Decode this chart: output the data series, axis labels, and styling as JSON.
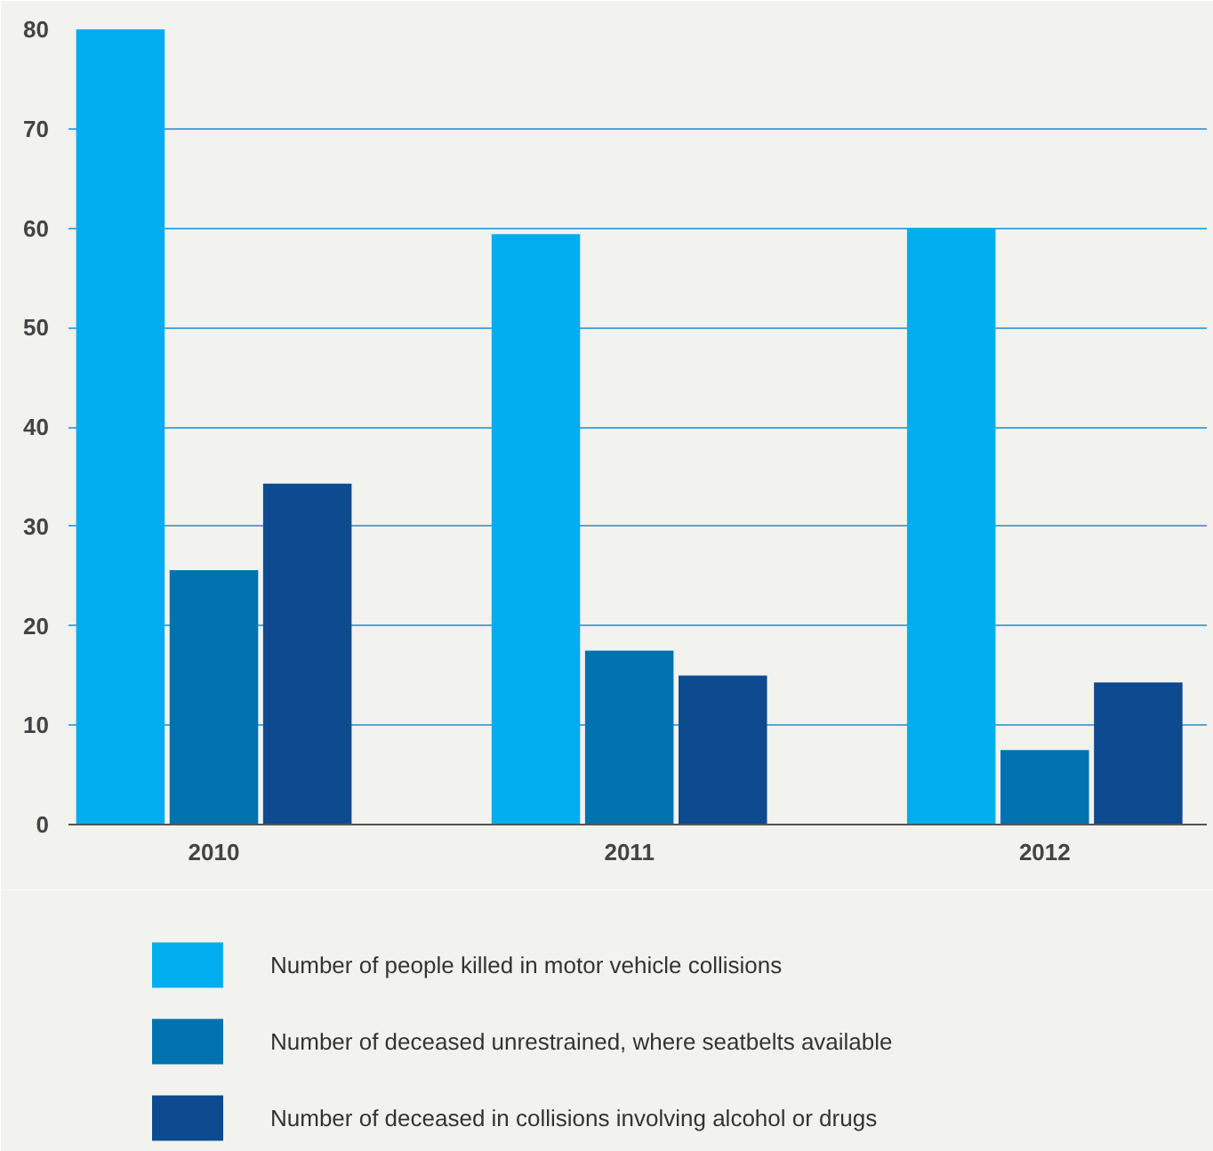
{
  "chart_data": {
    "type": "bar",
    "categories": [
      "2010",
      "2011",
      "2012"
    ],
    "series": [
      {
        "name": "Number of people killed in motor vehicle collisions",
        "color": "#00aeef",
        "values": [
          80,
          59.4,
          60
        ]
      },
      {
        "name": "Number of deceased unrestrained, where seatbelts available",
        "color": "#0072b0",
        "values": [
          25.6,
          17.5,
          7.5
        ]
      },
      {
        "name": "Number of deceased in collisions involving alcohol or drugs",
        "color": "#0d4a8f",
        "values": [
          34.3,
          15,
          14.3
        ]
      }
    ],
    "ylim": [
      0,
      80
    ],
    "yticks": [
      0,
      10,
      20,
      30,
      40,
      50,
      60,
      70,
      80
    ],
    "grid": "y",
    "legend": "bottom"
  }
}
